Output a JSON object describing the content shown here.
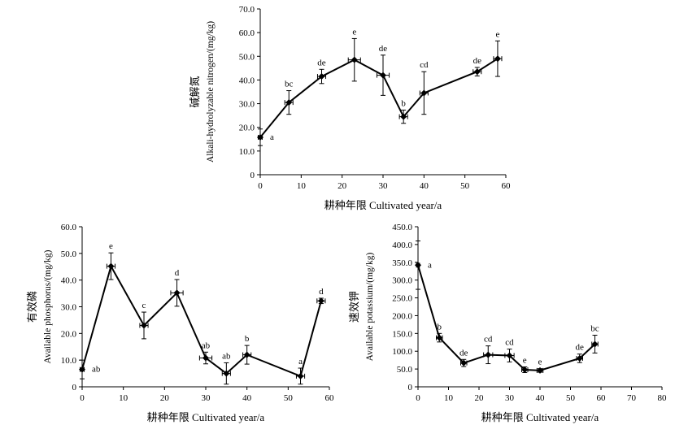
{
  "chart_data": [
    {
      "type": "line",
      "ylabel_cn": "碱解氮",
      "ylabel_en": "Alkali-hydrolyzable nitrogen/(mg/kg)",
      "xlabel": "耕种年限 Cultivated year/a",
      "xlim": [
        0,
        60
      ],
      "ylim": [
        0,
        70
      ],
      "xticks": [
        "0",
        "10",
        "20",
        "30",
        "40",
        "50",
        "60"
      ],
      "yticks": [
        "0",
        "10.0",
        "20.0",
        "30.0",
        "40.0",
        "50.0",
        "60.0",
        "70.0"
      ],
      "points": [
        {
          "x": 0,
          "y": 15.8,
          "yerr": 3.5,
          "xerr": 0.5,
          "label": "a"
        },
        {
          "x": 7,
          "y": 30.5,
          "yerr": 5.0,
          "xerr": 1.0,
          "label": "bc"
        },
        {
          "x": 15,
          "y": 41.5,
          "yerr": 3.0,
          "xerr": 1.0,
          "label": "de"
        },
        {
          "x": 23,
          "y": 48.5,
          "yerr": 9.0,
          "xerr": 1.5,
          "label": "e"
        },
        {
          "x": 30,
          "y": 42.0,
          "yerr": 8.5,
          "xerr": 1.5,
          "label": "de"
        },
        {
          "x": 35,
          "y": 24.5,
          "yerr": 2.8,
          "xerr": 1.0,
          "label": "b"
        },
        {
          "x": 40,
          "y": 34.5,
          "yerr": 9.0,
          "xerr": 1.0,
          "label": "cd"
        },
        {
          "x": 53,
          "y": 43.5,
          "yerr": 1.8,
          "xerr": 1.0,
          "label": "de"
        },
        {
          "x": 58,
          "y": 49.0,
          "yerr": 7.5,
          "xerr": 1.0,
          "label": "e"
        }
      ]
    },
    {
      "type": "line",
      "ylabel_cn": "有效磷",
      "ylabel_en": "Available phosphorus/(mg/kg)",
      "xlabel": "耕种年限 Cultivated year/a",
      "xlim": [
        0,
        60
      ],
      "ylim": [
        0,
        60
      ],
      "xticks": [
        "0",
        "10",
        "20",
        "30",
        "40",
        "50",
        "60"
      ],
      "yticks": [
        "0",
        "10.0",
        "20.0",
        "30.0",
        "40.0",
        "50.0",
        "60.0"
      ],
      "points": [
        {
          "x": 0,
          "y": 6.5,
          "yerr": 3.5,
          "xerr": 0.5,
          "label": "ab"
        },
        {
          "x": 7,
          "y": 45.2,
          "yerr": 5.0,
          "xerr": 1.0,
          "label": "e"
        },
        {
          "x": 15,
          "y": 23.0,
          "yerr": 5.0,
          "xerr": 1.0,
          "label": "c"
        },
        {
          "x": 23,
          "y": 35.2,
          "yerr": 5.0,
          "xerr": 1.5,
          "label": "d"
        },
        {
          "x": 30,
          "y": 10.8,
          "yerr": 2.2,
          "xerr": 1.5,
          "label": "ab"
        },
        {
          "x": 35,
          "y": 5.0,
          "yerr": 4.0,
          "xerr": 1.0,
          "label": "ab"
        },
        {
          "x": 40,
          "y": 12.0,
          "yerr": 3.5,
          "xerr": 1.0,
          "label": "b"
        },
        {
          "x": 53,
          "y": 4.0,
          "yerr": 3.0,
          "xerr": 1.0,
          "label": "a"
        },
        {
          "x": 58,
          "y": 32.2,
          "yerr": 1.0,
          "xerr": 1.0,
          "label": "d"
        }
      ]
    },
    {
      "type": "line",
      "ylabel_cn": "速效钾",
      "ylabel_en": "Available potassium/(mg/kg)",
      "xlabel": "耕种年限 Cultivated year/a",
      "xlim": [
        0,
        80
      ],
      "ylim": [
        0,
        450
      ],
      "xticks": [
        "0",
        "10",
        "20",
        "30",
        "40",
        "50",
        "60",
        "70",
        "80"
      ],
      "yticks": [
        "0",
        "50.0",
        "100.0",
        "150.0",
        "200.0",
        "250.0",
        "300.0",
        "350.0",
        "400.0",
        "450.0"
      ],
      "points": [
        {
          "x": 0,
          "y": 342,
          "yerr": 68,
          "xerr": 0.5,
          "label": "a"
        },
        {
          "x": 7,
          "y": 138,
          "yerr": 12,
          "xerr": 1.0,
          "label": "b"
        },
        {
          "x": 15,
          "y": 67,
          "yerr": 10,
          "xerr": 1.0,
          "label": "de"
        },
        {
          "x": 23,
          "y": 90,
          "yerr": 25,
          "xerr": 1.5,
          "label": "cd"
        },
        {
          "x": 30,
          "y": 88,
          "yerr": 18,
          "xerr": 1.5,
          "label": "cd"
        },
        {
          "x": 35,
          "y": 48,
          "yerr": 8,
          "xerr": 1.0,
          "label": "e"
        },
        {
          "x": 40,
          "y": 46,
          "yerr": 5,
          "xerr": 1.0,
          "label": "e"
        },
        {
          "x": 53,
          "y": 80,
          "yerr": 12,
          "xerr": 1.0,
          "label": "de"
        },
        {
          "x": 58,
          "y": 120,
          "yerr": 25,
          "xerr": 1.0,
          "label": "bc"
        }
      ]
    }
  ]
}
